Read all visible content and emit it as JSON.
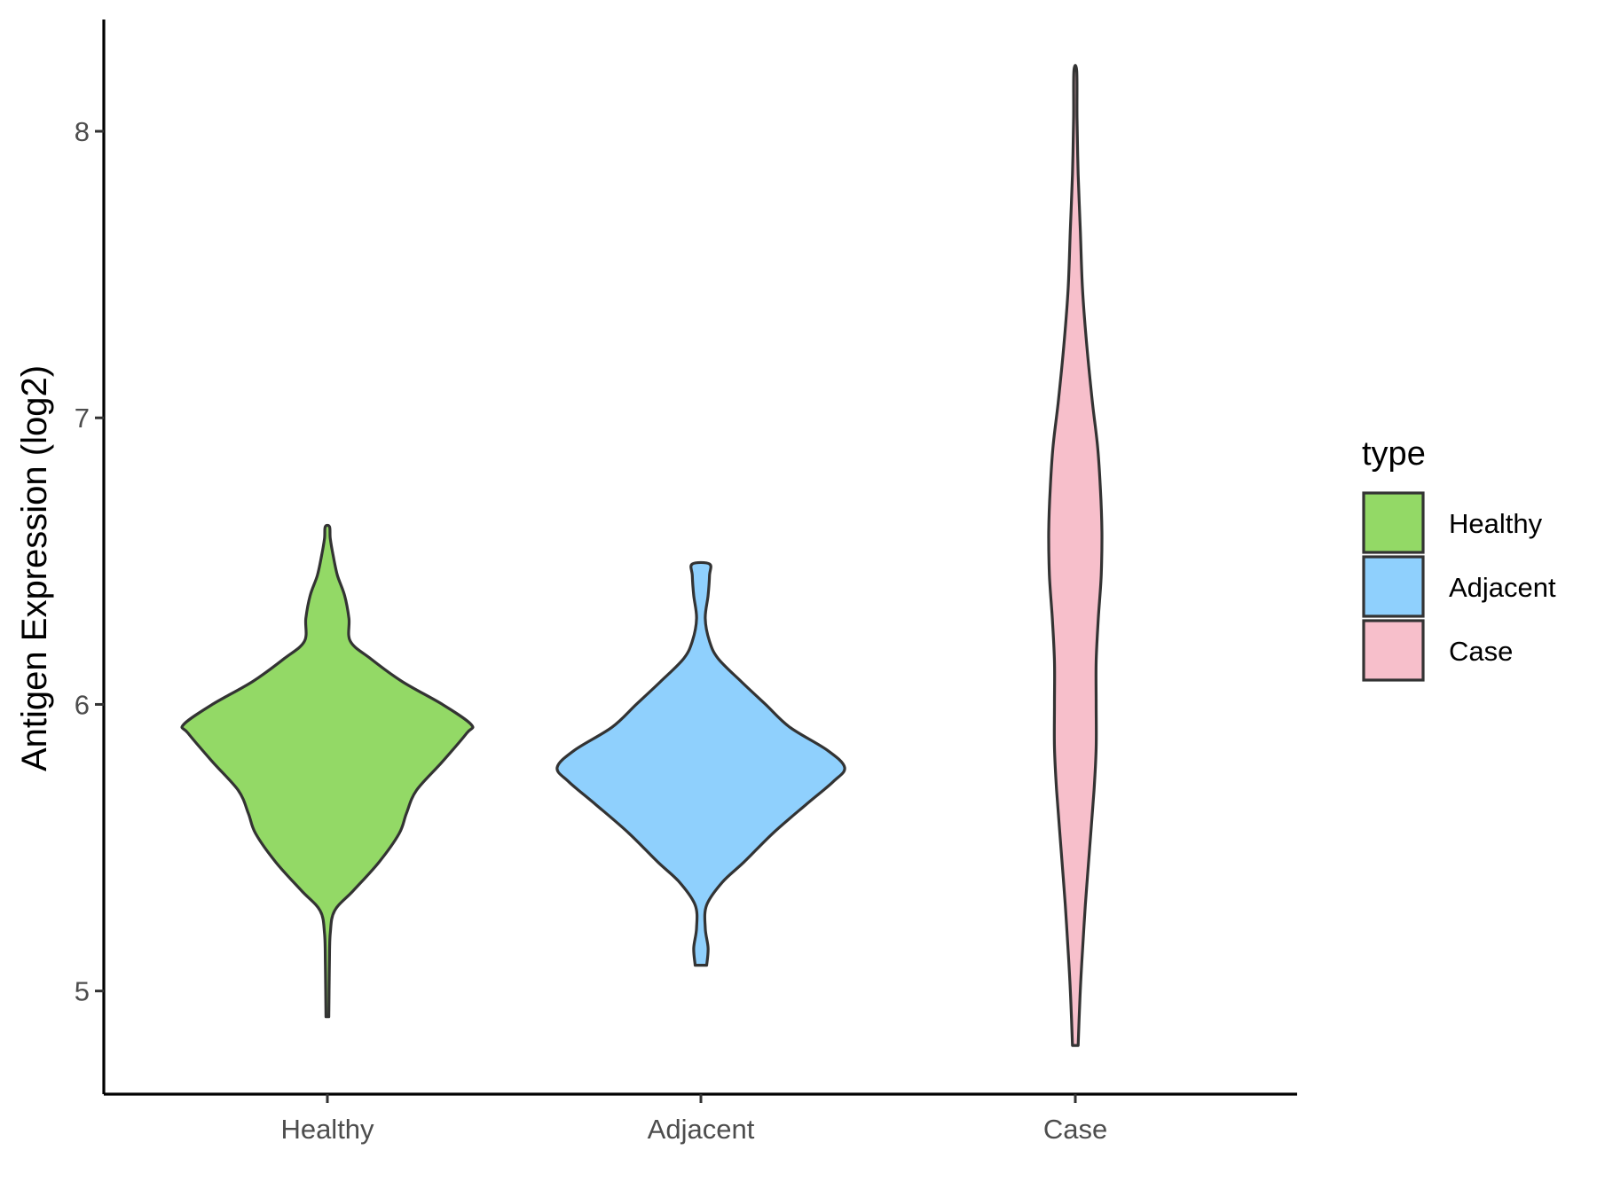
{
  "chart_data": {
    "type": "violin",
    "title": "",
    "xlabel": "",
    "ylabel": "Antigen Expression (log2)",
    "ylim": [
      4.64,
      8.39
    ],
    "yticks": [
      5,
      6,
      7,
      8
    ],
    "grid": false,
    "categories": [
      "Healthy",
      "Adjacent",
      "Case"
    ],
    "legend": {
      "title": "type",
      "placement": "right",
      "entries": [
        "Healthy",
        "Adjacent",
        "Case"
      ]
    },
    "colors": {
      "Healthy": "#93d966",
      "Adjacent": "#8fd0fd",
      "Case": "#f7bfcb",
      "outline": "#333333"
    },
    "series": [
      {
        "name": "Healthy",
        "color": "#93d966",
        "min": 4.91,
        "max": 6.62,
        "density_profile": [
          [
            4.91,
            0.01
          ],
          [
            5.0,
            0.012
          ],
          [
            5.1,
            0.014
          ],
          [
            5.2,
            0.02
          ],
          [
            5.28,
            0.05
          ],
          [
            5.35,
            0.18
          ],
          [
            5.45,
            0.36
          ],
          [
            5.55,
            0.5
          ],
          [
            5.62,
            0.55
          ],
          [
            5.7,
            0.62
          ],
          [
            5.8,
            0.8
          ],
          [
            5.9,
            0.97
          ],
          [
            5.93,
            1.0
          ],
          [
            6.0,
            0.8
          ],
          [
            6.08,
            0.52
          ],
          [
            6.16,
            0.3
          ],
          [
            6.22,
            0.16
          ],
          [
            6.3,
            0.15
          ],
          [
            6.38,
            0.12
          ],
          [
            6.45,
            0.07
          ],
          [
            6.52,
            0.04
          ],
          [
            6.58,
            0.02
          ],
          [
            6.62,
            0.015
          ]
        ]
      },
      {
        "name": "Adjacent",
        "color": "#8fd0fd",
        "min": 5.09,
        "max": 6.49,
        "density_profile": [
          [
            5.09,
            0.04
          ],
          [
            5.15,
            0.05
          ],
          [
            5.22,
            0.03
          ],
          [
            5.3,
            0.04
          ],
          [
            5.38,
            0.15
          ],
          [
            5.45,
            0.3
          ],
          [
            5.55,
            0.5
          ],
          [
            5.65,
            0.73
          ],
          [
            5.73,
            0.92
          ],
          [
            5.78,
            1.0
          ],
          [
            5.84,
            0.88
          ],
          [
            5.92,
            0.62
          ],
          [
            6.0,
            0.45
          ],
          [
            6.08,
            0.28
          ],
          [
            6.16,
            0.12
          ],
          [
            6.22,
            0.06
          ],
          [
            6.3,
            0.03
          ],
          [
            6.38,
            0.05
          ],
          [
            6.45,
            0.06
          ],
          [
            6.49,
            0.06
          ]
        ]
      },
      {
        "name": "Case",
        "color": "#f7bfcb",
        "min": 4.81,
        "max": 8.21,
        "density_profile": [
          [
            4.81,
            0.02
          ],
          [
            4.95,
            0.03
          ],
          [
            5.1,
            0.045
          ],
          [
            5.3,
            0.07
          ],
          [
            5.5,
            0.1
          ],
          [
            5.7,
            0.13
          ],
          [
            5.85,
            0.145
          ],
          [
            6.0,
            0.145
          ],
          [
            6.15,
            0.145
          ],
          [
            6.3,
            0.16
          ],
          [
            6.45,
            0.18
          ],
          [
            6.6,
            0.185
          ],
          [
            6.75,
            0.175
          ],
          [
            6.9,
            0.155
          ],
          [
            7.05,
            0.12
          ],
          [
            7.25,
            0.08
          ],
          [
            7.45,
            0.05
          ],
          [
            7.65,
            0.035
          ],
          [
            7.85,
            0.02
          ],
          [
            8.05,
            0.012
          ],
          [
            8.21,
            0.01
          ]
        ]
      }
    ]
  }
}
